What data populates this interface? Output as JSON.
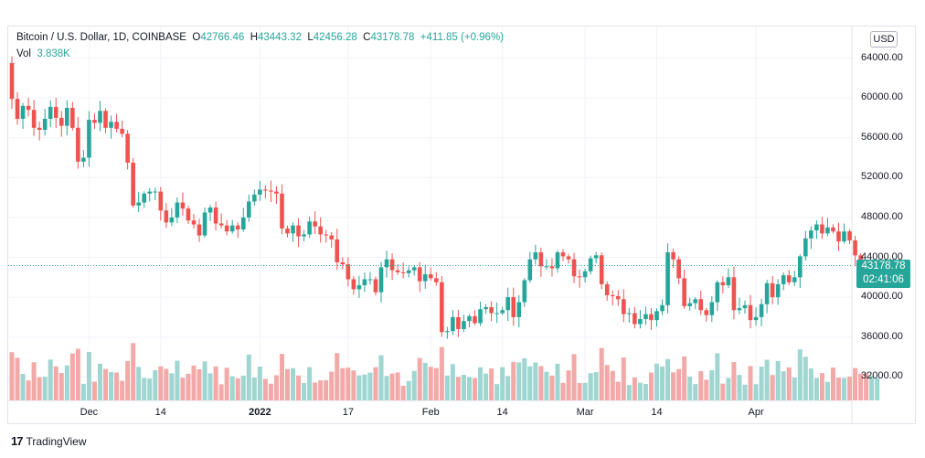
{
  "legend": {
    "symbol": "Bitcoin / U.S. Dollar, 1D, COINBASE",
    "o_key": "O",
    "o_val": "42766.46",
    "h_key": "H",
    "h_val": "43443.32",
    "l_key": "L",
    "l_val": "42456.28",
    "c_key": "C",
    "c_val": "43178.78",
    "change": "+411.85 (+0.96%)",
    "vol_key": "Vol",
    "vol_val": "3.838K"
  },
  "currency_button": "USD",
  "last_price": {
    "price": "43178.78",
    "countdown": "02:41:06"
  },
  "branding": "TradingView",
  "colors": {
    "up": "#26a69a",
    "down": "#ef5350",
    "up_vol": "#9fd6d1",
    "down_vol": "#f2a9a7",
    "grid": "#f0f3fa"
  },
  "chart_data": {
    "type": "candlestick",
    "y_axis": {
      "range": [
        30000,
        66000
      ],
      "ticks": [
        "64000.00",
        "60000.00",
        "56000.00",
        "52000.00",
        "48000.00",
        "44000.00",
        "40000.00",
        "36000.00",
        "32000.00"
      ],
      "tick_values": [
        64000,
        60000,
        56000,
        52000,
        48000,
        44000,
        40000,
        36000,
        32000
      ]
    },
    "x_axis": {
      "ticks": [
        {
          "label": "Dec",
          "index": 14,
          "bold": false
        },
        {
          "label": "14",
          "index": 27,
          "bold": false
        },
        {
          "label": "2022",
          "index": 45,
          "bold": true
        },
        {
          "label": "17",
          "index": 61,
          "bold": false
        },
        {
          "label": "Feb",
          "index": 76,
          "bold": false
        },
        {
          "label": "14",
          "index": 89,
          "bold": false
        },
        {
          "label": "Mar",
          "index": 104,
          "bold": false
        },
        {
          "label": "14",
          "index": 117,
          "bold": false
        },
        {
          "label": "Apr",
          "index": 135,
          "bold": false
        }
      ]
    },
    "close": [
      59900,
      57900,
      59200,
      58800,
      57000,
      56800,
      57900,
      59100,
      58000,
      57200,
      59000,
      57000,
      53600,
      54000,
      57800,
      57500,
      58700,
      57000,
      57600,
      56900,
      56400,
      53500,
      49200,
      49500,
      50400,
      50600,
      50600,
      48700,
      47500,
      48000,
      49500,
      48900,
      47700,
      47300,
      46200,
      48500,
      49000,
      47400,
      47200,
      46600,
      47200,
      46800,
      48000,
      49600,
      50300,
      50800,
      50700,
      50600,
      50400,
      46900,
      46400,
      47200,
      46100,
      46300,
      47600,
      47100,
      46300,
      46200,
      45800,
      43500,
      43300,
      41800,
      40800,
      41200,
      41800,
      41800,
      40500,
      43000,
      43800,
      42700,
      42500,
      42400,
      42700,
      43000,
      41600,
      42300,
      41900,
      41500,
      36500,
      36600,
      38000,
      36800,
      37600,
      38100,
      37400,
      38800,
      39000,
      38400,
      38400,
      38700,
      40000,
      38000,
      39500,
      41700,
      43800,
      44500,
      43100,
      43100,
      42900,
      44500,
      44100,
      43800,
      42100,
      42000,
      42600,
      43900,
      44200,
      41300,
      40200,
      40100,
      39800,
      38300,
      38400,
      37300,
      37800,
      38300,
      37700,
      38600,
      39200,
      44500,
      43800,
      41900,
      39100,
      39400,
      39800,
      38700,
      38200,
      39500,
      41500,
      41200,
      42000,
      38700,
      38900,
      39200,
      37700,
      38000,
      39300,
      41400,
      40000,
      41300,
      42200,
      41500,
      42000,
      44100,
      45900,
      46700,
      47300,
      46400,
      47000,
      46600,
      45600,
      46600,
      45700,
      44200,
      42700,
      42300,
      42800,
      43178
    ]
  }
}
